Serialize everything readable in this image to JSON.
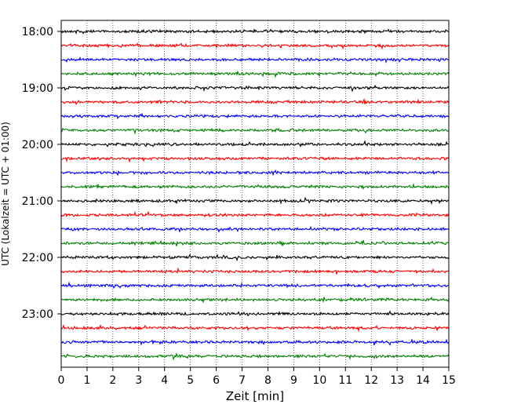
{
  "chart_data": {
    "type": "line",
    "title": "",
    "xlabel": "Zeit  [min]",
    "ylabel": "UTC (Lokalzeit = UTC + 01:00)",
    "xlim": [
      0,
      15
    ],
    "xticks": [
      0,
      1,
      2,
      3,
      4,
      5,
      6,
      7,
      8,
      9,
      10,
      11,
      12,
      13,
      14,
      15
    ],
    "ytick_labels": [
      "18:00",
      "19:00",
      "20:00",
      "21:00",
      "22:00",
      "23:00"
    ],
    "grid": "vertical dotted",
    "trace_interval_minutes": 15,
    "trace_start": "18:00",
    "trace_count": 24,
    "trace_colors": [
      "#000000",
      "#ff0000",
      "#0000ff",
      "#008000"
    ]
  }
}
